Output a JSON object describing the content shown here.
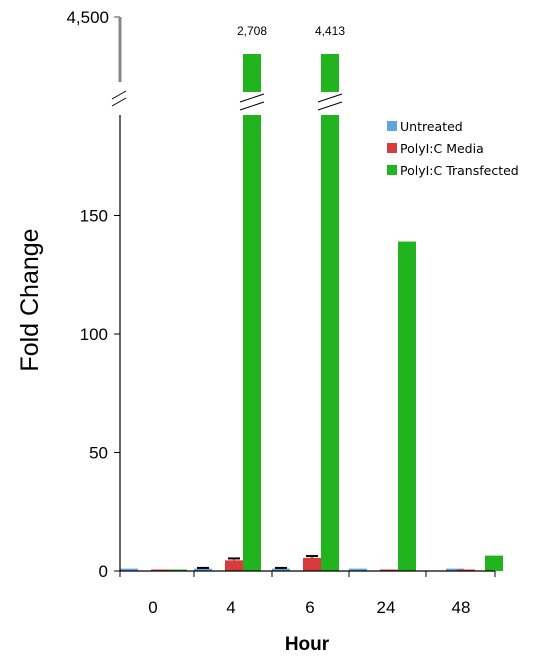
{
  "chart_data": {
    "type": "bar",
    "xlabel": "Hour",
    "ylabel": "Fold Change",
    "categories": [
      "0",
      "4",
      "6",
      "24",
      "48"
    ],
    "y_ticks": [
      0,
      50,
      100,
      150
    ],
    "y_tick_labels": [
      "0",
      "50",
      "100",
      "150"
    ],
    "ylim": [
      0,
      195
    ],
    "axis_break": true,
    "break_top_tick": 4500,
    "break_top_tick_label": "4,500",
    "series": [
      {
        "name": "Untreated",
        "color": "#5fa3e0",
        "values": [
          1,
          1,
          1,
          1,
          1
        ],
        "errors": [
          0,
          0.3,
          0.3,
          0,
          0
        ]
      },
      {
        "name": "PolyI:C Media",
        "color": "#d93a3a",
        "values": [
          0.5,
          4.5,
          5.5,
          0.5,
          0.5
        ],
        "errors": [
          0,
          0.8,
          0.8,
          0,
          0
        ]
      },
      {
        "name": "PolyI:C Transfected",
        "color": "#22b41e",
        "values": [
          0.5,
          2708,
          4413,
          139,
          6.5
        ],
        "errors": [
          0,
          0,
          0,
          0,
          0
        ]
      }
    ],
    "broken_bar_labels": [
      {
        "category": "4",
        "text": "2,708"
      },
      {
        "category": "6",
        "text": "4,413"
      }
    ],
    "legend_position": "top-right",
    "grid": false
  }
}
